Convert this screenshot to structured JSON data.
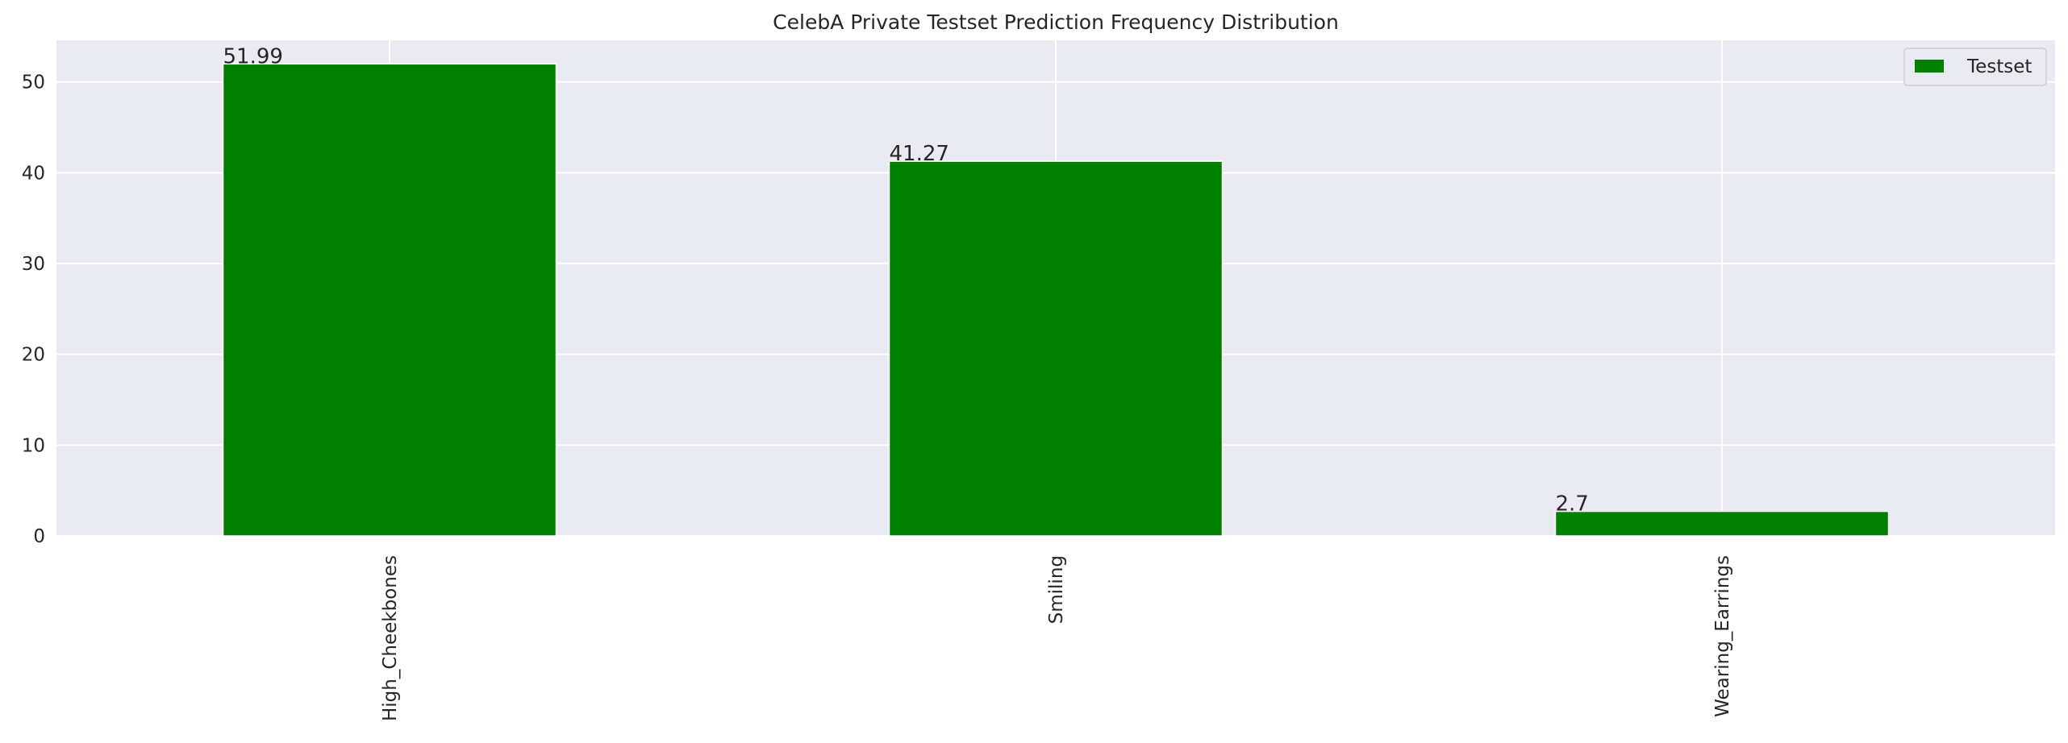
{
  "chart_data": {
    "type": "bar",
    "title": "CelebA Private Testset Prediction Frequency Distribution",
    "categories": [
      "High_Cheekbones",
      "Smiling",
      "Wearing_Earrings"
    ],
    "series": [
      {
        "name": "Testset",
        "values": [
          51.99,
          41.27,
          2.7
        ]
      }
    ],
    "data_labels": [
      "51.99",
      "41.27",
      "2.7"
    ],
    "xlabel": "",
    "ylabel": "",
    "ylim": [
      0,
      54.59
    ],
    "yticks": [
      0,
      10,
      20,
      30,
      40,
      50
    ],
    "ytick_labels": [
      "0",
      "10",
      "20",
      "30",
      "40",
      "50"
    ],
    "grid": true,
    "legend_position": "top-right",
    "colors": {
      "bar": "#008000",
      "plot_background": "#eaeaf2",
      "grid": "#ffffff",
      "text": "#262626"
    }
  }
}
